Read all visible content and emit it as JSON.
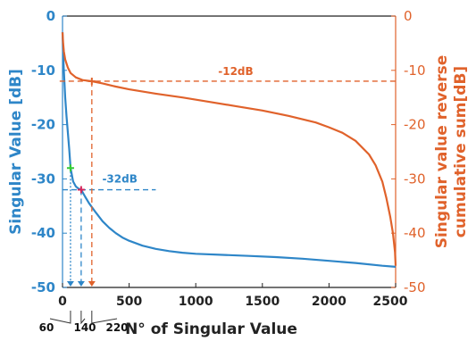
{
  "chart_data": {
    "type": "line",
    "x_axis": {
      "label": "N° of Singular Value",
      "lim": [
        0,
        2500
      ],
      "ticks": [
        0,
        500,
        1000,
        1500,
        2000,
        2500
      ],
      "tick_labels": [
        "0",
        "500",
        "1000",
        "1500",
        "2000",
        "2500"
      ]
    },
    "y_left": {
      "label": "Singular Value [dB]",
      "lim": [
        -50,
        0
      ],
      "ticks": [
        0,
        -10,
        -20,
        -30,
        -40,
        -50
      ],
      "tick_labels": [
        "0",
        "-10",
        "-20",
        "-30",
        "-40",
        "-50"
      ],
      "color": "#2e86c8"
    },
    "y_right": {
      "label_lines": [
        "Singular value reverse",
        "cumulative sum[dB]"
      ],
      "lim": [
        -50,
        0
      ],
      "ticks": [
        0,
        -10,
        -20,
        -30,
        -40,
        -50
      ],
      "tick_labels": [
        "0",
        "-10",
        "-20",
        "-30",
        "-40",
        "-50"
      ],
      "color": "#e0622b"
    },
    "grid": false,
    "series": [
      {
        "axis": "left",
        "color": "#2e86c8",
        "points": [
          [
            0,
            -3
          ],
          [
            5,
            -7
          ],
          [
            10,
            -10
          ],
          [
            20,
            -15
          ],
          [
            30,
            -18.5
          ],
          [
            40,
            -21.5
          ],
          [
            50,
            -24.5
          ],
          [
            60,
            -28
          ],
          [
            80,
            -30.5
          ],
          [
            100,
            -31.4
          ],
          [
            120,
            -31.8
          ],
          [
            140,
            -32
          ],
          [
            170,
            -33.3
          ],
          [
            200,
            -34.5
          ],
          [
            250,
            -36.2
          ],
          [
            300,
            -37.8
          ],
          [
            350,
            -39
          ],
          [
            400,
            -40
          ],
          [
            450,
            -40.8
          ],
          [
            500,
            -41.4
          ],
          [
            600,
            -42.3
          ],
          [
            700,
            -42.9
          ],
          [
            800,
            -43.3
          ],
          [
            900,
            -43.6
          ],
          [
            1000,
            -43.8
          ],
          [
            1200,
            -44
          ],
          [
            1400,
            -44.2
          ],
          [
            1600,
            -44.4
          ],
          [
            1800,
            -44.7
          ],
          [
            2000,
            -45.1
          ],
          [
            2200,
            -45.5
          ],
          [
            2400,
            -46
          ],
          [
            2500,
            -46.2
          ]
        ]
      },
      {
        "axis": "right",
        "color": "#e0622b",
        "points": [
          [
            0,
            -3
          ],
          [
            5,
            -5
          ],
          [
            10,
            -6.5
          ],
          [
            20,
            -8
          ],
          [
            40,
            -9.5
          ],
          [
            60,
            -10.5
          ],
          [
            100,
            -11.3
          ],
          [
            150,
            -11.8
          ],
          [
            220,
            -12
          ],
          [
            300,
            -12.4
          ],
          [
            400,
            -13
          ],
          [
            500,
            -13.5
          ],
          [
            700,
            -14.3
          ],
          [
            900,
            -15
          ],
          [
            1100,
            -15.8
          ],
          [
            1300,
            -16.6
          ],
          [
            1500,
            -17.4
          ],
          [
            1700,
            -18.4
          ],
          [
            1900,
            -19.6
          ],
          [
            2000,
            -20.5
          ],
          [
            2100,
            -21.5
          ],
          [
            2200,
            -23
          ],
          [
            2300,
            -25.5
          ],
          [
            2350,
            -27.5
          ],
          [
            2400,
            -30.5
          ],
          [
            2430,
            -33.5
          ],
          [
            2460,
            -37
          ],
          [
            2480,
            -40
          ],
          [
            2495,
            -43.5
          ],
          [
            2500,
            -46
          ]
        ]
      }
    ],
    "thresholds": [
      {
        "label": "-12dB",
        "axis": "right",
        "y": -12,
        "x": 220,
        "color": "#e0622b"
      },
      {
        "label": "-32dB",
        "axis": "left",
        "y": -32,
        "x": 140,
        "color": "#2e86c8"
      }
    ],
    "markers": [
      {
        "x": 60,
        "y": -28,
        "axis": "left",
        "color": "#33cc33",
        "label": "60"
      },
      {
        "x": 140,
        "y": -32,
        "axis": "left",
        "color": "#d6265b",
        "label": "140"
      },
      {
        "x": 220,
        "y": -12,
        "axis": "right",
        "color": "#e0622b",
        "label": "220"
      }
    ]
  }
}
